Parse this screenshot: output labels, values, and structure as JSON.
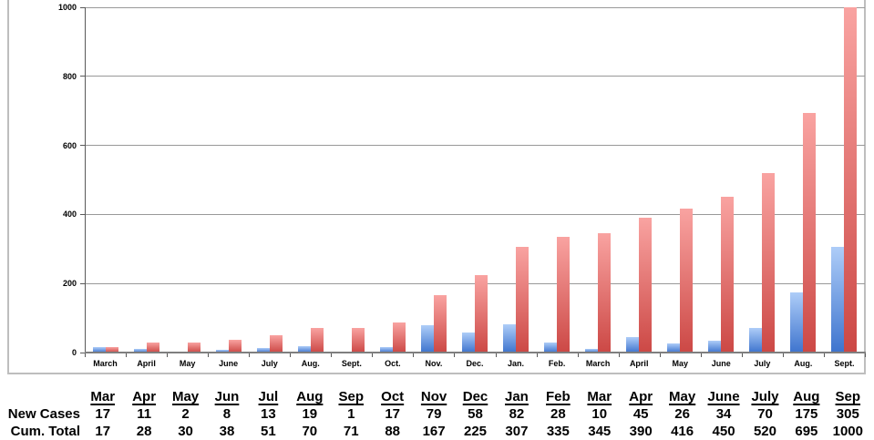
{
  "chart_data": {
    "type": "bar",
    "title": "",
    "xlabel": "",
    "ylabel": "",
    "categories": [
      "March",
      "April",
      "May",
      "June",
      "July",
      "Aug.",
      "Sept.",
      "Oct.",
      "Nov.",
      "Dec.",
      "Jan.",
      "Feb.",
      "March",
      "April",
      "May",
      "June",
      "July",
      "Aug.",
      "Sept."
    ],
    "series": [
      {
        "name": "New Cases",
        "values": [
          17,
          11,
          2,
          8,
          13,
          19,
          1,
          17,
          79,
          58,
          82,
          28,
          10,
          45,
          26,
          34,
          70,
          175,
          305
        ],
        "color_top": "#AECDF8",
        "color_bottom": "#3E74CE"
      },
      {
        "name": "Cum. Total",
        "values": [
          17,
          28,
          30,
          38,
          51,
          70,
          71,
          88,
          167,
          225,
          307,
          335,
          345,
          390,
          416,
          450,
          520,
          695,
          1000
        ],
        "color_top": "#F9A3A1",
        "color_bottom": "#CC4845"
      }
    ],
    "ylim": [
      0,
      1000
    ],
    "yticks": [
      0,
      200,
      400,
      600,
      800,
      1000
    ],
    "grid": true,
    "legend": "none"
  },
  "table": {
    "row_labels": [
      "New Cases",
      "Cum. Total"
    ],
    "headers": [
      "Mar",
      "Apr",
      "May",
      "Jun",
      "Jul",
      "Aug",
      "Sep",
      "Oct",
      "Nov",
      "Dec",
      "Jan",
      "Feb",
      "Mar",
      "Apr",
      "May",
      "June",
      "July",
      "Aug",
      "Sep"
    ],
    "rows": [
      [
        17,
        11,
        2,
        8,
        13,
        19,
        1,
        17,
        79,
        58,
        82,
        28,
        10,
        45,
        26,
        34,
        70,
        175,
        305
      ],
      [
        17,
        28,
        30,
        38,
        51,
        70,
        71,
        88,
        167,
        225,
        307,
        335,
        345,
        390,
        416,
        450,
        520,
        695,
        1000
      ]
    ]
  },
  "colors": {
    "gridline": "#999999",
    "axis": "#7f7f7f",
    "axis_dark": "#595959",
    "chart_border": "#bebebe",
    "text": "#000000"
  }
}
